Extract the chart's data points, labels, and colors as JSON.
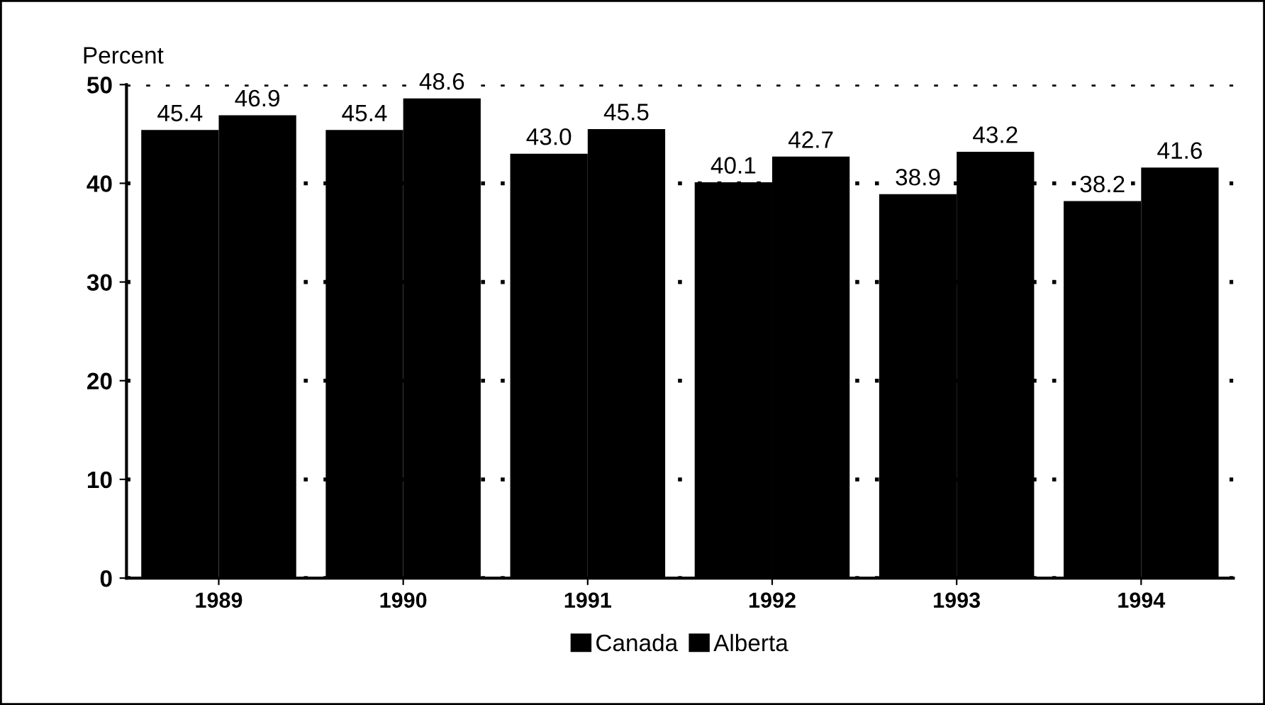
{
  "chart_data": {
    "type": "bar",
    "ylabel": "Percent",
    "categories": [
      "1989",
      "1990",
      "1991",
      "1992",
      "1993",
      "1994"
    ],
    "series": [
      {
        "name": "Canada",
        "color": "#000000",
        "values": [
          45.4,
          45.4,
          43.0,
          40.1,
          38.9,
          38.2
        ],
        "value_labels": [
          "45.4",
          "45.4",
          "43.0",
          "40.1",
          "38.9",
          "38.2"
        ]
      },
      {
        "name": "Alberta",
        "color": "#000000",
        "values": [
          46.9,
          48.6,
          45.5,
          42.7,
          43.2,
          41.6
        ],
        "value_labels": [
          "46.9",
          "48.6",
          "45.5",
          "42.7",
          "43.2",
          "41.6"
        ]
      }
    ],
    "ylim": [
      0,
      50
    ],
    "yticks": [
      0,
      10,
      20,
      30,
      40,
      50
    ],
    "grid": "y",
    "line_style": "dotted",
    "legend": "bottom"
  }
}
